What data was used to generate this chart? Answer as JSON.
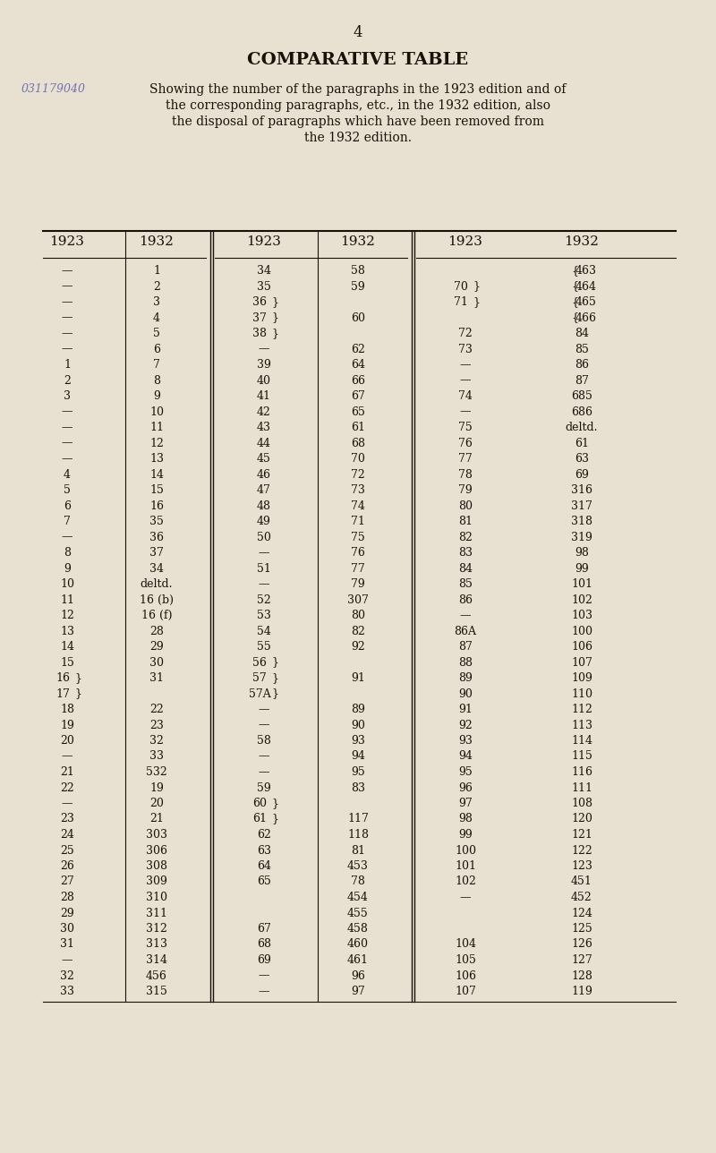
{
  "page_number": "4",
  "title": "COMPARATIVE TABLE",
  "subtitle": "Showing the number of the paragraphs in the 1923 edition and of\nthe corresponding paragraphs, etc., in the 1932 edition, also\nthe disposal of paragraphs which have been removed from\nthe 1932 edition.",
  "col_headers": [
    "1923",
    "1932",
    "1923",
    "1932",
    "1923",
    "1932"
  ],
  "background_color": "#e8e0d0",
  "text_color": "#1a1008",
  "rows": [
    [
      "—",
      "1",
      "34",
      "58",
      "",
      "{463"
    ],
    [
      "—",
      "2",
      "35",
      "59",
      "70}",
      "{464"
    ],
    [
      "—",
      "3",
      "36}",
      "",
      "71}",
      "{465"
    ],
    [
      "—",
      "4",
      "37}",
      "60",
      "",
      "{466"
    ],
    [
      "—",
      "5",
      "38}",
      "",
      "72",
      "84"
    ],
    [
      "—",
      "6",
      "—",
      "62",
      "73",
      "85"
    ],
    [
      "1",
      "7",
      "39",
      "64",
      "—",
      "86"
    ],
    [
      "2",
      "8",
      "40",
      "66",
      "—",
      "87"
    ],
    [
      "3",
      "9",
      "41",
      "67",
      "74",
      "685"
    ],
    [
      "—",
      "10",
      "42",
      "65",
      "—",
      "686"
    ],
    [
      "—",
      "11",
      "43",
      "61",
      "75",
      "deltd."
    ],
    [
      "—",
      "12",
      "44",
      "68",
      "76",
      "61"
    ],
    [
      "—",
      "13",
      "45",
      "70",
      "77",
      "63"
    ],
    [
      "4",
      "14",
      "46",
      "72",
      "78",
      "69"
    ],
    [
      "5",
      "15",
      "47",
      "73",
      "79",
      "316"
    ],
    [
      "6",
      "16",
      "48",
      "74",
      "80",
      "317"
    ],
    [
      "7",
      "35",
      "49",
      "71",
      "81",
      "318"
    ],
    [
      "—",
      "36",
      "50",
      "75",
      "82",
      "319"
    ],
    [
      "8",
      "37",
      "—",
      "76",
      "83",
      "98"
    ],
    [
      "9",
      "34",
      "51",
      "77",
      "84",
      "99"
    ],
    [
      "10",
      "deltd.",
      "—",
      "79",
      "85",
      "101"
    ],
    [
      "11",
      "16 (b)",
      "52",
      "307",
      "86",
      "102"
    ],
    [
      "12",
      "16 (f)",
      "53",
      "80",
      "—",
      "103"
    ],
    [
      "13",
      "28",
      "54",
      "82",
      "86A",
      "100"
    ],
    [
      "14",
      "29",
      "55",
      "92",
      "87",
      "106"
    ],
    [
      "15",
      "30",
      "56}",
      "",
      "88",
      "107"
    ],
    [
      "16}",
      "31",
      "57}",
      "91",
      "89",
      "109"
    ],
    [
      "17}",
      "",
      "57A}",
      "",
      "90",
      "110"
    ],
    [
      "18",
      "22",
      "—",
      "89",
      "91",
      "112"
    ],
    [
      "19",
      "23",
      "—",
      "90",
      "92",
      "113"
    ],
    [
      "20",
      "32",
      "58",
      "93",
      "93",
      "114"
    ],
    [
      "—",
      "33",
      "—",
      "94",
      "94",
      "115"
    ],
    [
      "21",
      "532",
      "—",
      "95",
      "95",
      "116"
    ],
    [
      "22",
      "19",
      "59",
      "83",
      "96",
      "111"
    ],
    [
      "—",
      "20",
      "60}",
      "",
      "97",
      "108"
    ],
    [
      "23",
      "21",
      "61}",
      "117",
      "98",
      "120"
    ],
    [
      "24",
      "303",
      "62",
      "118",
      "99",
      "121"
    ],
    [
      "25",
      "306",
      "63",
      "81",
      "100",
      "122"
    ],
    [
      "26",
      "308",
      "64",
      "453",
      "101",
      "123"
    ],
    [
      "27",
      "309",
      "65",
      "78",
      "102",
      "451"
    ],
    [
      "28",
      "310",
      "",
      "454",
      "—",
      "452"
    ],
    [
      "29",
      "311",
      "",
      "455",
      "",
      "124"
    ],
    [
      "30",
      "312",
      "67",
      "458",
      "",
      "125"
    ],
    [
      "31",
      "313",
      "68",
      "460",
      "104",
      "126"
    ],
    [
      "—",
      "314",
      "69",
      "461",
      "105",
      "127"
    ],
    [
      "32",
      "456",
      "—",
      "96",
      "106",
      "128"
    ],
    [
      "33",
      "315",
      "—",
      "97",
      "107",
      "119"
    ]
  ],
  "stamp_text": "031179040"
}
